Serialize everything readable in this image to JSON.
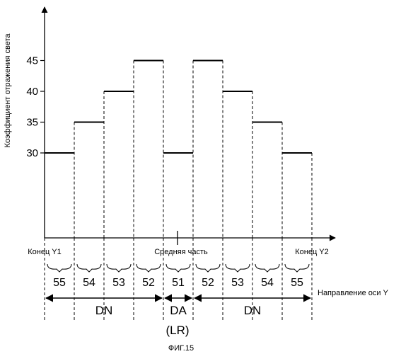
{
  "chart_data": {
    "type": "bar",
    "style": "step",
    "ylabel": "Коэффициент отражения света",
    "y_ticks": [
      30,
      35,
      40,
      45
    ],
    "ylim": [
      20,
      50
    ],
    "categories": [
      "55",
      "54",
      "53",
      "52",
      "51",
      "52",
      "53",
      "54",
      "55"
    ],
    "values": [
      30,
      35,
      40,
      45,
      30,
      45,
      40,
      35,
      30
    ],
    "x_annotations": {
      "left_end": "Конец Y1",
      "middle": "Средняя часть",
      "right_end": "Конец Y2"
    },
    "axis_direction_label": "Направление оси Y",
    "regions": [
      {
        "label": "DN",
        "from_segment": 0,
        "to_segment": 3
      },
      {
        "label": "DA",
        "from_segment": 4,
        "to_segment": 4
      },
      {
        "label": "DN",
        "from_segment": 5,
        "to_segment": 8
      }
    ],
    "sub_label": "(LR)",
    "figure_caption": "ФИГ.15"
  },
  "colors": {
    "ink": "#000000",
    "background": "#ffffff"
  }
}
